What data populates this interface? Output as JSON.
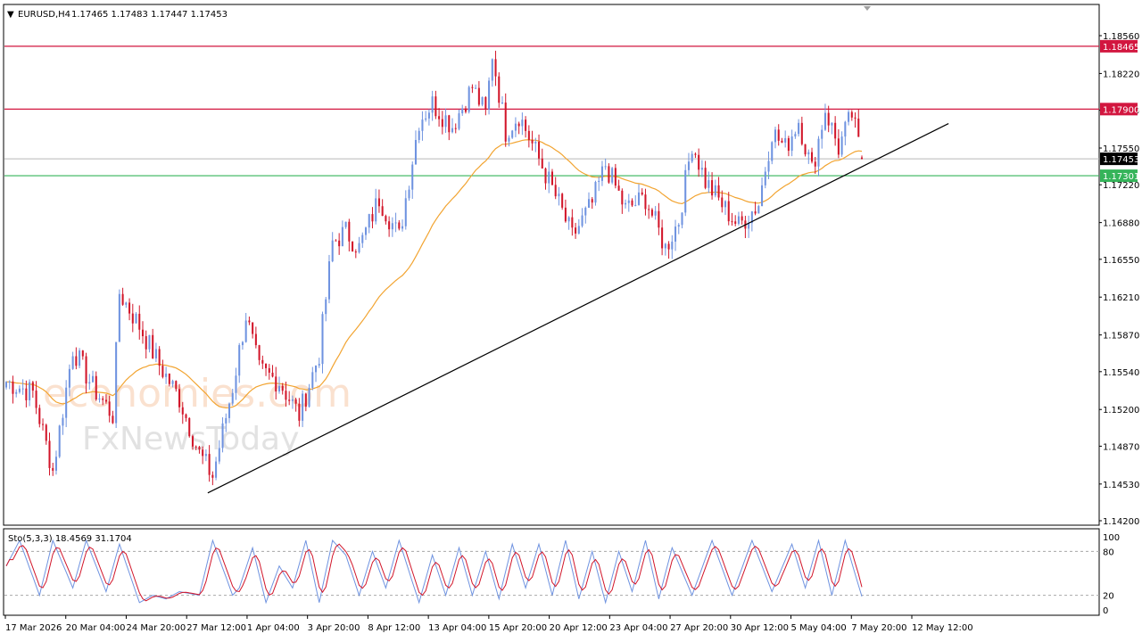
{
  "header": {
    "arrow": "▼",
    "symbol": "EURUSD,H4",
    "ohlc": "1.17465 1.17483 1.17447 1.17453"
  },
  "watermark": {
    "line1": "economies.com",
    "line2": "FxNewsToday"
  },
  "colors": {
    "bull": "#6f93e0",
    "bear": "#d2162a",
    "ma": "#f2a431",
    "resistance": "#d2163f",
    "support": "#35b45a",
    "trendline": "#000000",
    "price_tag": "#000000",
    "stoch_k": "#6f93e0",
    "stoch_d": "#d2162a"
  },
  "chart_data": {
    "type": "candlestick",
    "symbol": "EURUSD",
    "timeframe": "H4",
    "y_ticks": [
      "1.18560",
      "1.18220",
      "1.17890",
      "1.17550",
      "1.17220",
      "1.16880",
      "1.16550",
      "1.16210",
      "1.15870",
      "1.15540",
      "1.15200",
      "1.14870",
      "1.14530",
      "1.14200"
    ],
    "ylim": [
      1.142,
      1.1856
    ],
    "x_ticks": [
      "17 Mar 2026",
      "20 Mar 04:00",
      "24 Mar 20:00",
      "27 Mar 12:00",
      "1 Apr 04:00",
      "3 Apr 20:00",
      "8 Apr 12:00",
      "13 Apr 04:00",
      "15 Apr 20:00",
      "20 Apr 12:00",
      "23 Apr 04:00",
      "27 Apr 20:00",
      "30 Apr 12:00",
      "5 May 04:00",
      "7 May 20:00",
      "12 May 12:00"
    ],
    "price_anchors": [
      [
        0,
        1.1545
      ],
      [
        8,
        1.1535
      ],
      [
        14,
        1.1465
      ],
      [
        20,
        1.1575
      ],
      [
        26,
        1.154
      ],
      [
        32,
        1.1515
      ],
      [
        34,
        1.1625
      ],
      [
        40,
        1.1595
      ],
      [
        46,
        1.156
      ],
      [
        52,
        1.153
      ],
      [
        58,
        1.148
      ],
      [
        62,
        1.146
      ],
      [
        68,
        1.154
      ],
      [
        72,
        1.1605
      ],
      [
        76,
        1.1555
      ],
      [
        82,
        1.1545
      ],
      [
        88,
        1.1515
      ],
      [
        94,
        1.157
      ],
      [
        98,
        1.167
      ],
      [
        102,
        1.168
      ],
      [
        106,
        1.1665
      ],
      [
        112,
        1.171
      ],
      [
        118,
        1.1675
      ],
      [
        124,
        1.178
      ],
      [
        128,
        1.1795
      ],
      [
        134,
        1.1775
      ],
      [
        140,
        1.181
      ],
      [
        144,
        1.1785
      ],
      [
        146,
        1.184
      ],
      [
        150,
        1.177
      ],
      [
        154,
        1.1785
      ],
      [
        160,
        1.1745
      ],
      [
        166,
        1.1705
      ],
      [
        170,
        1.1675
      ],
      [
        176,
        1.1705
      ],
      [
        180,
        1.174
      ],
      [
        186,
        1.17
      ],
      [
        192,
        1.171
      ],
      [
        198,
        1.1665
      ],
      [
        202,
        1.169
      ],
      [
        206,
        1.176
      ],
      [
        210,
        1.1725
      ],
      [
        216,
        1.17
      ],
      [
        220,
        1.1685
      ],
      [
        226,
        1.1705
      ],
      [
        230,
        1.177
      ],
      [
        234,
        1.1755
      ],
      [
        238,
        1.178
      ],
      [
        242,
        1.1735
      ],
      [
        246,
        1.179
      ],
      [
        250,
        1.1755
      ],
      [
        254,
        1.1785
      ],
      [
        257,
        1.1745
      ]
    ],
    "candle_count": 258,
    "last_ohlc": {
      "open": 1.17465,
      "high": 1.17483,
      "low": 1.17447,
      "close": 1.17453
    },
    "horizontal_levels": [
      {
        "label": "1.18465",
        "value": 1.18465,
        "kind": "resistance"
      },
      {
        "label": "1.17900",
        "value": 1.179,
        "kind": "resistance"
      },
      {
        "label": "1.17453",
        "value": 1.17453,
        "kind": "current-price"
      },
      {
        "label": "1.17301",
        "value": 1.17301,
        "kind": "support"
      }
    ],
    "trendline": {
      "from": [
        0.185,
        1.1445
      ],
      "to": [
        0.865,
        1.1777
      ]
    },
    "moving_average": {
      "type": "line",
      "period_note": ""
    },
    "stochastic": {
      "label": "Sto(5,3,3) 18.4569 31.1704",
      "k_last": 18.4569,
      "d_last": 31.1704,
      "levels": [
        80,
        20
      ],
      "y_ticks": [
        "100",
        "80",
        "20",
        "0"
      ],
      "k_anchors": [
        [
          0,
          60
        ],
        [
          4,
          95
        ],
        [
          10,
          20
        ],
        [
          14,
          95
        ],
        [
          20,
          30
        ],
        [
          24,
          95
        ],
        [
          30,
          25
        ],
        [
          34,
          90
        ],
        [
          40,
          10
        ],
        [
          44,
          20
        ],
        [
          48,
          15
        ],
        [
          52,
          25
        ],
        [
          58,
          20
        ],
        [
          62,
          95
        ],
        [
          68,
          20
        ],
        [
          70,
          30
        ],
        [
          74,
          85
        ],
        [
          78,
          10
        ],
        [
          82,
          60
        ],
        [
          86,
          30
        ],
        [
          90,
          95
        ],
        [
          94,
          10
        ],
        [
          98,
          95
        ],
        [
          102,
          75
        ],
        [
          106,
          20
        ],
        [
          110,
          80
        ],
        [
          114,
          30
        ],
        [
          118,
          95
        ],
        [
          124,
          10
        ],
        [
          128,
          75
        ],
        [
          132,
          20
        ],
        [
          136,
          85
        ],
        [
          140,
          20
        ],
        [
          144,
          80
        ],
        [
          148,
          15
        ],
        [
          152,
          90
        ],
        [
          156,
          30
        ],
        [
          160,
          90
        ],
        [
          164,
          20
        ],
        [
          168,
          95
        ],
        [
          172,
          15
        ],
        [
          176,
          80
        ],
        [
          180,
          10
        ],
        [
          184,
          80
        ],
        [
          188,
          25
        ],
        [
          192,
          95
        ],
        [
          196,
          15
        ],
        [
          200,
          85
        ],
        [
          206,
          20
        ],
        [
          212,
          95
        ],
        [
          218,
          20
        ],
        [
          224,
          95
        ],
        [
          230,
          25
        ],
        [
          236,
          90
        ],
        [
          240,
          30
        ],
        [
          244,
          95
        ],
        [
          248,
          20
        ],
        [
          252,
          95
        ],
        [
          257,
          18
        ]
      ]
    }
  }
}
